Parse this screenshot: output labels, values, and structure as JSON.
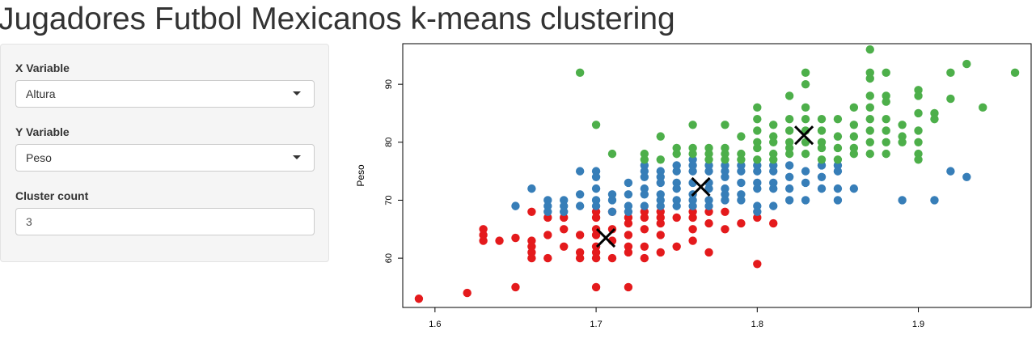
{
  "page": {
    "title": "Jugadores Futbol Mexicanos k-means clustering"
  },
  "sidebar": {
    "x_variable": {
      "label": "X Variable",
      "selected": "Altura"
    },
    "y_variable": {
      "label": "Y Variable",
      "selected": "Peso"
    },
    "cluster_count": {
      "label": "Cluster count",
      "value": "3"
    }
  },
  "colors": {
    "cluster_1": "#E41A1C",
    "cluster_2": "#377EB8",
    "cluster_3": "#4DAF4A",
    "centroid": "#000000"
  },
  "chart_data": {
    "type": "scatter",
    "title": "",
    "xlabel": "",
    "ylabel": "Peso",
    "xlim": [
      1.58,
      1.97
    ],
    "ylim": [
      51.5,
      97
    ],
    "xticks": [
      1.6,
      1.7,
      1.8,
      1.9
    ],
    "yticks": [
      60,
      70,
      80,
      90
    ],
    "x_tick_labels": [
      "1.6",
      "1.7",
      "1.8",
      "1.9"
    ],
    "y_tick_labels": [
      "60",
      "70",
      "80",
      "90"
    ],
    "grid": false,
    "series": [
      {
        "cluster": 1,
        "color": "#E41A1C",
        "points": [
          [
            1.59,
            53
          ],
          [
            1.62,
            54
          ],
          [
            1.63,
            65
          ],
          [
            1.63,
            64
          ],
          [
            1.63,
            63
          ],
          [
            1.64,
            63
          ],
          [
            1.65,
            63.5
          ],
          [
            1.65,
            55
          ],
          [
            1.66,
            68
          ],
          [
            1.66,
            63
          ],
          [
            1.66,
            62
          ],
          [
            1.66,
            61
          ],
          [
            1.66,
            60
          ],
          [
            1.67,
            67
          ],
          [
            1.67,
            64
          ],
          [
            1.67,
            60
          ],
          [
            1.68,
            67
          ],
          [
            1.68,
            65
          ],
          [
            1.68,
            62
          ],
          [
            1.69,
            64
          ],
          [
            1.69,
            61
          ],
          [
            1.69,
            60
          ],
          [
            1.7,
            68
          ],
          [
            1.7,
            67
          ],
          [
            1.7,
            65
          ],
          [
            1.7,
            64
          ],
          [
            1.7,
            62
          ],
          [
            1.7,
            61
          ],
          [
            1.7,
            60
          ],
          [
            1.71,
            68
          ],
          [
            1.71,
            65
          ],
          [
            1.71,
            63
          ],
          [
            1.71,
            60
          ],
          [
            1.72,
            67
          ],
          [
            1.72,
            66
          ],
          [
            1.72,
            64
          ],
          [
            1.72,
            62
          ],
          [
            1.72,
            61
          ],
          [
            1.73,
            68
          ],
          [
            1.73,
            67
          ],
          [
            1.73,
            65
          ],
          [
            1.73,
            62
          ],
          [
            1.73,
            60
          ],
          [
            1.74,
            68
          ],
          [
            1.74,
            67
          ],
          [
            1.74,
            66
          ],
          [
            1.74,
            64
          ],
          [
            1.74,
            61
          ],
          [
            1.75,
            67
          ],
          [
            1.75,
            62
          ],
          [
            1.76,
            68
          ],
          [
            1.76,
            67
          ],
          [
            1.76,
            65
          ],
          [
            1.76,
            63
          ],
          [
            1.77,
            68
          ],
          [
            1.77,
            66
          ],
          [
            1.77,
            61
          ],
          [
            1.78,
            68
          ],
          [
            1.78,
            65
          ],
          [
            1.79,
            66
          ],
          [
            1.8,
            67
          ],
          [
            1.8,
            59
          ],
          [
            1.81,
            66
          ],
          [
            1.7,
            55
          ],
          [
            1.72,
            55
          ]
        ]
      },
      {
        "cluster": 2,
        "color": "#377EB8",
        "points": [
          [
            1.65,
            69
          ],
          [
            1.66,
            72
          ],
          [
            1.67,
            70
          ],
          [
            1.67,
            69
          ],
          [
            1.67,
            68
          ],
          [
            1.68,
            70
          ],
          [
            1.68,
            69
          ],
          [
            1.68,
            68
          ],
          [
            1.69,
            71
          ],
          [
            1.69,
            69
          ],
          [
            1.69,
            75
          ],
          [
            1.7,
            75
          ],
          [
            1.7,
            74
          ],
          [
            1.7,
            72
          ],
          [
            1.7,
            70
          ],
          [
            1.7,
            69
          ],
          [
            1.71,
            71
          ],
          [
            1.71,
            70
          ],
          [
            1.71,
            68
          ],
          [
            1.72,
            73
          ],
          [
            1.72,
            71
          ],
          [
            1.72,
            69
          ],
          [
            1.72,
            68
          ],
          [
            1.73,
            76
          ],
          [
            1.73,
            75
          ],
          [
            1.73,
            74
          ],
          [
            1.73,
            72
          ],
          [
            1.73,
            71
          ],
          [
            1.73,
            69
          ],
          [
            1.74,
            75
          ],
          [
            1.74,
            74
          ],
          [
            1.74,
            73
          ],
          [
            1.74,
            71
          ],
          [
            1.74,
            70
          ],
          [
            1.74,
            69
          ],
          [
            1.75,
            76
          ],
          [
            1.75,
            75
          ],
          [
            1.75,
            73
          ],
          [
            1.75,
            72
          ],
          [
            1.75,
            70
          ],
          [
            1.75,
            69
          ],
          [
            1.76,
            77
          ],
          [
            1.76,
            76
          ],
          [
            1.76,
            75
          ],
          [
            1.76,
            73
          ],
          [
            1.76,
            71
          ],
          [
            1.76,
            70
          ],
          [
            1.76,
            69
          ],
          [
            1.77,
            76
          ],
          [
            1.77,
            75
          ],
          [
            1.77,
            73
          ],
          [
            1.77,
            72
          ],
          [
            1.77,
            70
          ],
          [
            1.77,
            69
          ],
          [
            1.78,
            76
          ],
          [
            1.78,
            75
          ],
          [
            1.78,
            74
          ],
          [
            1.78,
            72
          ],
          [
            1.78,
            71
          ],
          [
            1.78,
            70
          ],
          [
            1.79,
            76
          ],
          [
            1.79,
            75
          ],
          [
            1.79,
            73
          ],
          [
            1.79,
            71
          ],
          [
            1.79,
            70
          ],
          [
            1.8,
            76
          ],
          [
            1.8,
            75
          ],
          [
            1.8,
            73
          ],
          [
            1.8,
            72
          ],
          [
            1.8,
            69
          ],
          [
            1.8,
            68
          ],
          [
            1.81,
            76
          ],
          [
            1.81,
            75
          ],
          [
            1.81,
            73
          ],
          [
            1.81,
            72
          ],
          [
            1.81,
            69
          ],
          [
            1.82,
            76
          ],
          [
            1.82,
            74
          ],
          [
            1.82,
            72
          ],
          [
            1.82,
            70
          ],
          [
            1.83,
            75
          ],
          [
            1.83,
            73
          ],
          [
            1.83,
            70
          ],
          [
            1.84,
            76
          ],
          [
            1.84,
            74
          ],
          [
            1.84,
            72
          ],
          [
            1.85,
            76
          ],
          [
            1.85,
            75
          ],
          [
            1.85,
            72
          ],
          [
            1.85,
            70
          ],
          [
            1.86,
            72
          ],
          [
            1.89,
            70
          ],
          [
            1.91,
            70
          ],
          [
            1.92,
            75
          ],
          [
            1.93,
            74
          ]
        ]
      },
      {
        "cluster": 3,
        "color": "#4DAF4A",
        "points": [
          [
            1.69,
            92
          ],
          [
            1.7,
            83
          ],
          [
            1.71,
            78
          ],
          [
            1.73,
            78
          ],
          [
            1.73,
            77
          ],
          [
            1.74,
            81
          ],
          [
            1.74,
            77
          ],
          [
            1.75,
            79
          ],
          [
            1.75,
            78
          ],
          [
            1.76,
            83
          ],
          [
            1.76,
            79
          ],
          [
            1.76,
            78
          ],
          [
            1.77,
            79
          ],
          [
            1.77,
            78
          ],
          [
            1.77,
            77
          ],
          [
            1.78,
            83
          ],
          [
            1.78,
            79
          ],
          [
            1.78,
            78
          ],
          [
            1.78,
            77
          ],
          [
            1.79,
            81
          ],
          [
            1.79,
            78
          ],
          [
            1.79,
            77
          ],
          [
            1.8,
            86
          ],
          [
            1.8,
            84
          ],
          [
            1.8,
            82
          ],
          [
            1.8,
            80
          ],
          [
            1.8,
            79
          ],
          [
            1.8,
            77
          ],
          [
            1.81,
            83
          ],
          [
            1.81,
            81
          ],
          [
            1.81,
            80
          ],
          [
            1.81,
            78
          ],
          [
            1.81,
            77
          ],
          [
            1.82,
            88
          ],
          [
            1.82,
            84
          ],
          [
            1.82,
            82
          ],
          [
            1.82,
            80
          ],
          [
            1.82,
            79
          ],
          [
            1.82,
            78
          ],
          [
            1.83,
            92
          ],
          [
            1.83,
            90
          ],
          [
            1.83,
            86
          ],
          [
            1.83,
            84
          ],
          [
            1.83,
            82
          ],
          [
            1.83,
            80
          ],
          [
            1.83,
            78
          ],
          [
            1.84,
            84
          ],
          [
            1.84,
            82
          ],
          [
            1.84,
            80
          ],
          [
            1.84,
            79
          ],
          [
            1.84,
            77
          ],
          [
            1.85,
            84
          ],
          [
            1.85,
            81
          ],
          [
            1.85,
            79
          ],
          [
            1.85,
            77
          ],
          [
            1.86,
            86
          ],
          [
            1.86,
            83
          ],
          [
            1.86,
            81
          ],
          [
            1.86,
            79
          ],
          [
            1.86,
            78
          ],
          [
            1.87,
            96
          ],
          [
            1.87,
            92
          ],
          [
            1.87,
            91
          ],
          [
            1.87,
            88
          ],
          [
            1.87,
            86
          ],
          [
            1.87,
            84
          ],
          [
            1.87,
            82
          ],
          [
            1.87,
            80
          ],
          [
            1.87,
            78
          ],
          [
            1.88,
            92
          ],
          [
            1.88,
            88
          ],
          [
            1.88,
            87
          ],
          [
            1.88,
            84
          ],
          [
            1.88,
            82
          ],
          [
            1.88,
            80
          ],
          [
            1.88,
            78
          ],
          [
            1.89,
            83
          ],
          [
            1.89,
            81
          ],
          [
            1.89,
            80
          ],
          [
            1.9,
            89
          ],
          [
            1.9,
            88
          ],
          [
            1.9,
            85
          ],
          [
            1.9,
            82
          ],
          [
            1.9,
            80
          ],
          [
            1.9,
            78
          ],
          [
            1.9,
            77
          ],
          [
            1.91,
            85
          ],
          [
            1.91,
            84
          ],
          [
            1.92,
            92
          ],
          [
            1.92,
            87.5
          ],
          [
            1.93,
            93.5
          ],
          [
            1.94,
            86
          ],
          [
            1.96,
            92
          ]
        ]
      }
    ],
    "centroids": [
      [
        1.706,
        63.5
      ],
      [
        1.765,
        72.3
      ],
      [
        1.829,
        81.2
      ]
    ]
  }
}
